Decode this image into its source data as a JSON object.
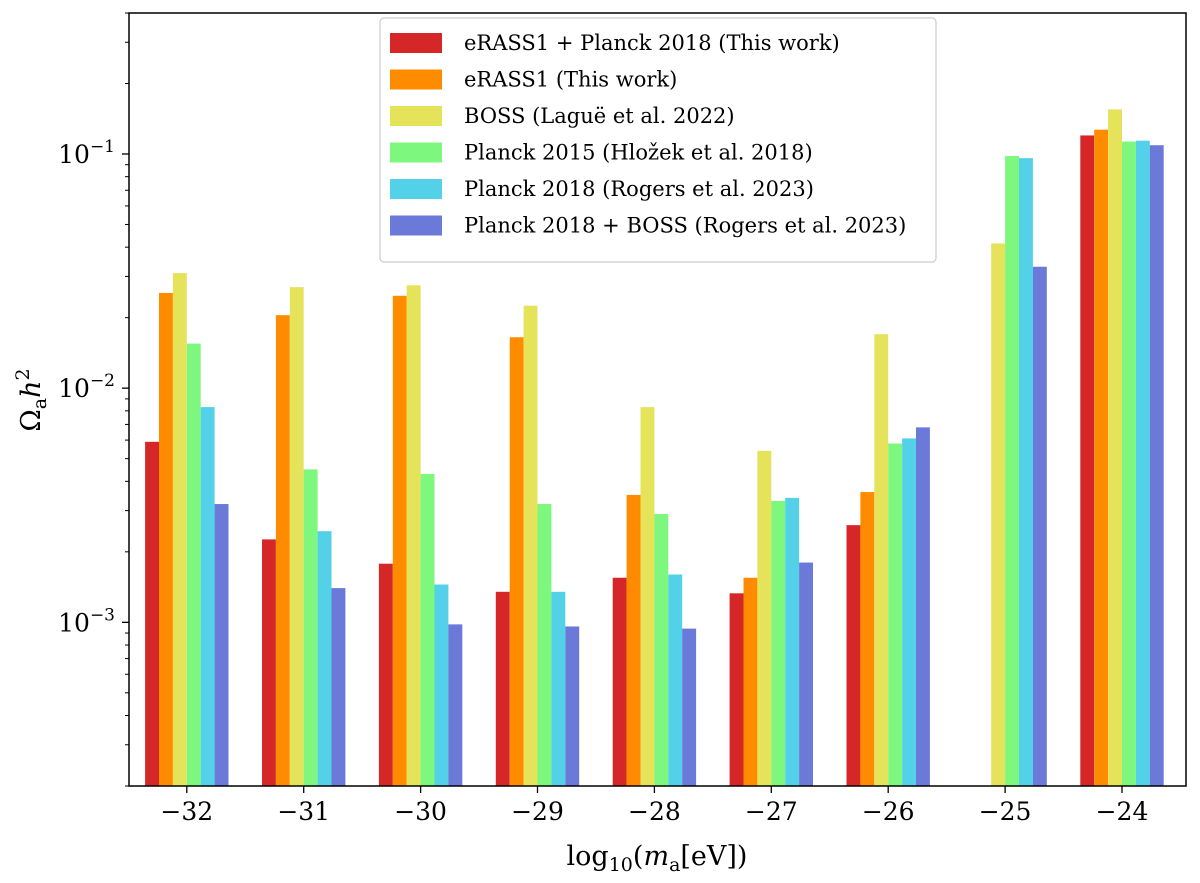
{
  "chart_data": {
    "type": "bar",
    "yscale": "log",
    "ylim": [
      0.0002,
      0.4
    ],
    "categories": [
      "−32",
      "−31",
      "−30",
      "−29",
      "−28",
      "−27",
      "−26",
      "−25",
      "−24"
    ],
    "xlabel": "log10(ma[eV])",
    "ylabel": "Ωah²",
    "yticks": [
      {
        "value": 0.001,
        "base": "10",
        "exp": "−3"
      },
      {
        "value": 0.01,
        "base": "10",
        "exp": "−2"
      },
      {
        "value": 0.1,
        "base": "10",
        "exp": "−1"
      }
    ],
    "grid": false,
    "legend_position": "top-center",
    "series": [
      {
        "name": "eRASS1 + Planck 2018 (This work)",
        "color": "#d62728",
        "values": [
          0.0059,
          0.00226,
          0.00178,
          0.00135,
          0.00155,
          0.00133,
          0.0026,
          null,
          0.12
        ]
      },
      {
        "name": "eRASS1 (This work)",
        "color": "#ff8c00",
        "values": [
          0.0255,
          0.0205,
          0.0248,
          0.0165,
          0.0035,
          0.00155,
          0.0036,
          null,
          0.127
        ]
      },
      {
        "name": "BOSS (Laguë et al. 2022)",
        "color": "#e5e35a",
        "values": [
          0.031,
          0.027,
          0.0275,
          0.0225,
          0.0083,
          0.0054,
          0.017,
          0.0415,
          0.155
        ]
      },
      {
        "name": "Planck 2015 (Hložek et al. 2018)",
        "color": "#7ef77e",
        "values": [
          0.0155,
          0.0045,
          0.0043,
          0.0032,
          0.0029,
          0.0033,
          0.0058,
          0.098,
          0.113
        ]
      },
      {
        "name": "Planck 2018 (Rogers et al. 2023)",
        "color": "#52d1e8",
        "values": [
          0.0083,
          0.00245,
          0.00145,
          0.00135,
          0.0016,
          0.0034,
          0.0061,
          0.096,
          0.114
        ]
      },
      {
        "name": "Planck 2018 + BOSS (Rogers et al. 2023)",
        "color": "#6b7ad8",
        "values": [
          0.0032,
          0.0014,
          0.00098,
          0.00096,
          0.00094,
          0.0018,
          0.0068,
          0.033,
          0.109
        ]
      }
    ]
  }
}
